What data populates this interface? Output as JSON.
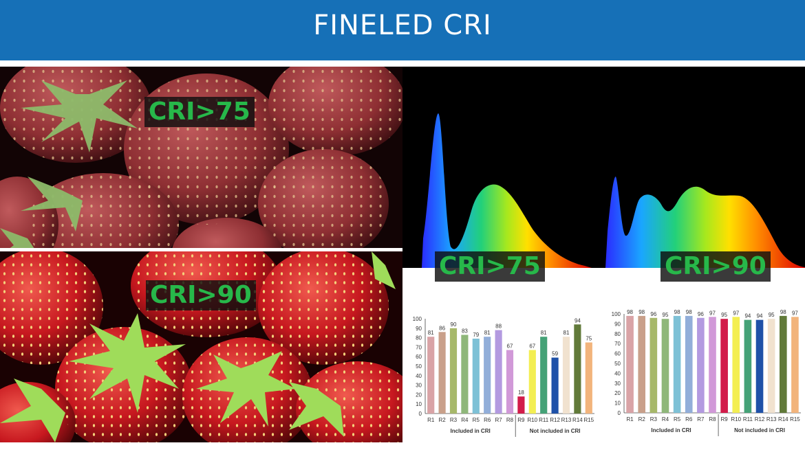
{
  "header": {
    "title": "FINELED CRI",
    "bg_color": "#1670b7"
  },
  "photos": {
    "top_label": "CRI>75",
    "bottom_label": "CRI>90"
  },
  "spectra": {
    "left_label": "CRI>75",
    "right_label": "CRI>90"
  },
  "chart_data": [
    {
      "type": "bar",
      "categories": [
        "R1",
        "R2",
        "R3",
        "R4",
        "R5",
        "R6",
        "R7",
        "R8",
        "R9",
        "R10",
        "R11",
        "R12",
        "R13",
        "R14",
        "R15"
      ],
      "values": [
        81,
        86,
        90,
        83,
        79,
        81,
        88,
        67,
        18,
        67,
        81,
        59,
        81,
        94,
        75
      ],
      "colors": [
        "#d9a3a6",
        "#c9a08a",
        "#a7b86a",
        "#8fb77a",
        "#7ec1d6",
        "#92aed9",
        "#b39ae0",
        "#d199d8",
        "#d21c4a",
        "#f3ee52",
        "#45a277",
        "#1f51a8",
        "#f1e2cf",
        "#617a3a",
        "#f2b47c"
      ],
      "ylim": [
        0,
        100
      ],
      "yticks": [
        0,
        10,
        20,
        30,
        40,
        50,
        60,
        70,
        80,
        90,
        100
      ],
      "group_labels": [
        "Included in CRI",
        "Not included in CRI"
      ],
      "group_split_after": 8
    },
    {
      "type": "bar",
      "categories": [
        "R1",
        "R2",
        "R3",
        "R4",
        "R5",
        "R6",
        "R7",
        "R8",
        "R9",
        "R10",
        "R11",
        "R12",
        "R13",
        "R14",
        "R15"
      ],
      "values": [
        98,
        98,
        96,
        95,
        98,
        98,
        96,
        97,
        95,
        97,
        94,
        94,
        95,
        98,
        97
      ],
      "colors": [
        "#d9a3a6",
        "#c9a08a",
        "#a7b86a",
        "#8fb77a",
        "#7ec1d6",
        "#92aed9",
        "#b39ae0",
        "#d199d8",
        "#d21c4a",
        "#f3ee52",
        "#45a277",
        "#1f51a8",
        "#f1e2cf",
        "#617a3a",
        "#f2b47c"
      ],
      "ylim": [
        0,
        100
      ],
      "yticks": [
        0,
        10,
        20,
        30,
        40,
        50,
        60,
        70,
        80,
        90,
        100
      ],
      "group_labels": [
        "Included in CRI",
        "Not included in CRI"
      ],
      "group_split_after": 8
    }
  ]
}
